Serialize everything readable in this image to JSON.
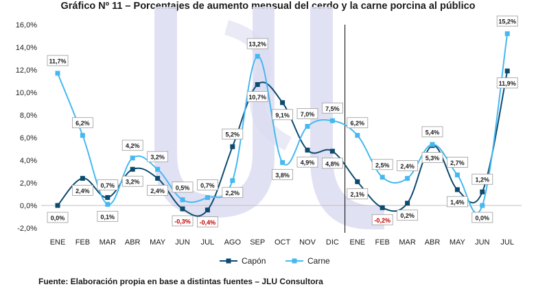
{
  "chart_data": {
    "type": "line",
    "title": "Gráfico Nº 11 – Porcentajes de aumento mensual del cerdo y la carne porcina al público",
    "categories": [
      "ENE",
      "FEB",
      "MAR",
      "ABR",
      "MAY",
      "JUN",
      "JUL",
      "AGO",
      "SEP",
      "OCT",
      "NOV",
      "DIC",
      "ENE",
      "FEB",
      "MAR",
      "ABR",
      "MAY",
      "JUN",
      "JUL"
    ],
    "y_ticks": [
      "-2,0%",
      "0,0%",
      "2,0%",
      "4,0%",
      "6,0%",
      "8,0%",
      "10,0%",
      "12,0%",
      "14,0%",
      "16,0%"
    ],
    "ylim": [
      -2,
      16
    ],
    "xlabel": "",
    "ylabel": "",
    "grid": false,
    "legend_position": "bottom",
    "series": [
      {
        "name": "Capón",
        "color": "#0c4a6e",
        "values": [
          0.0,
          2.4,
          0.7,
          3.2,
          2.4,
          -0.3,
          -0.4,
          5.2,
          10.7,
          9.1,
          4.9,
          4.8,
          2.1,
          -0.2,
          0.2,
          5.3,
          1.4,
          1.2,
          11.9
        ],
        "labels": [
          "0,0%",
          "2,4%",
          "0,7%",
          "3,2%",
          "2,4%",
          "-0,3%",
          "-0,4%",
          "5,2%",
          "10,7%",
          "9,1%",
          "4,9%",
          "4,8%",
          "2,1%",
          "-0,2%",
          "0,2%",
          "5,3%",
          "1,4%",
          "1,2%",
          "11,9%"
        ]
      },
      {
        "name": "Carne",
        "color": "#45b8f0",
        "values": [
          11.7,
          6.2,
          0.1,
          4.2,
          3.2,
          0.5,
          0.7,
          2.2,
          13.2,
          3.8,
          7.0,
          7.5,
          6.2,
          2.5,
          2.4,
          5.4,
          2.7,
          0.0,
          15.2
        ],
        "labels": [
          "11,7%",
          "6,2%",
          "0,1%",
          "4,2%",
          "3,2%",
          "0,5%",
          "0,7%",
          "2,2%",
          "13,2%",
          "3,8%",
          "7,0%",
          "7,5%",
          "6,2%",
          "2,5%",
          "2,4%",
          "5,4%",
          "2,7%",
          "0,0%",
          "15,2%"
        ]
      }
    ],
    "separator_after_index": 11
  },
  "source_text": "Fuente: Elaboración propia en base a distintas fuentes – JLU Consultora",
  "watermark": "logo-watermark"
}
